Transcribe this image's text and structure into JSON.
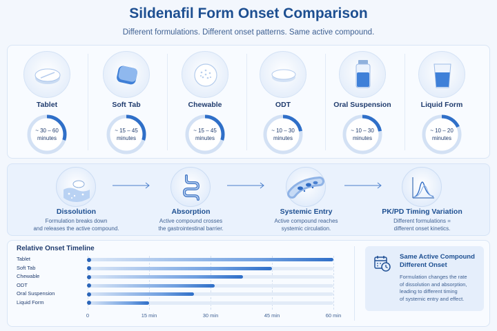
{
  "header": {
    "title": "Sildenafil Form Onset Comparison",
    "subtitle": "Different formulations. Different onset patterns. Same active compound."
  },
  "formulations": [
    {
      "name": "Tablet",
      "onset_line1": "~ 30 – 60",
      "onset_line2": "minutes",
      "icon": "tablet-icon",
      "ring_fraction": 0.3
    },
    {
      "name": "Soft Tab",
      "onset_line1": "~ 15 – 45",
      "onset_line2": "minutes",
      "icon": "soft-tab-icon",
      "ring_fraction": 0.3
    },
    {
      "name": "Chewable",
      "onset_line1": "~ 15 – 45",
      "onset_line2": "minutes",
      "icon": "chewable-icon",
      "ring_fraction": 0.3
    },
    {
      "name": "ODT",
      "onset_line1": "~ 10 – 30",
      "onset_line2": "minutes",
      "icon": "odt-icon",
      "ring_fraction": 0.22
    },
    {
      "name": "Oral Suspension",
      "onset_line1": "~ 10 – 30",
      "onset_line2": "minutes",
      "icon": "bottle-icon",
      "ring_fraction": 0.22
    },
    {
      "name": "Liquid Form",
      "onset_line1": "~ 10 – 20",
      "onset_line2": "minutes",
      "icon": "glass-icon",
      "ring_fraction": 0.18
    }
  ],
  "process": [
    {
      "title": "Dissolution",
      "desc_line1": "Formulation breaks down",
      "desc_line2": "and releases the active compound.",
      "icon": "dissolution-icon"
    },
    {
      "title": "Absorption",
      "desc_line1": "Active compound crosses",
      "desc_line2": "the gastrointestinal barrier.",
      "icon": "intestine-icon"
    },
    {
      "title": "Systemic Entry",
      "desc_line1": "Active compound reaches",
      "desc_line2": "systemic circulation.",
      "icon": "blood-vessel-icon"
    },
    {
      "title": "PK/PD Timing Variation",
      "desc_line1": "Different formulations =",
      "desc_line2": "different onset kinetics.",
      "icon": "curve-chart-icon"
    }
  ],
  "timeline": {
    "title": "Relative Onset Timeline",
    "unit": "min",
    "xlim": [
      0,
      60
    ],
    "ticks": [
      "0",
      "15 min",
      "30 min",
      "45 min",
      "60 min"
    ],
    "tick_values": [
      0,
      15,
      30,
      45,
      60
    ],
    "rows": [
      {
        "label": "Tablet",
        "value": 60
      },
      {
        "label": "Soft Tab",
        "value": 45
      },
      {
        "label": "Chewable",
        "value": 38
      },
      {
        "label": "ODT",
        "value": 31
      },
      {
        "label": "Oral Suspension",
        "value": 26
      },
      {
        "label": "Liquid Form",
        "value": 15
      }
    ]
  },
  "note": {
    "title_line1": "Same Active Compound",
    "title_line2": "Different Onset",
    "text_lines": [
      "Formulation changes the rate",
      "of dissolution and absorption,",
      "leading to different timing",
      "of systemic entry and effect."
    ]
  },
  "colors": {
    "accent": "#2f6fc8",
    "dark_text": "#1f3b6d",
    "ring_track": "#d3e1f4",
    "panel_bg": "#f8fbff"
  }
}
